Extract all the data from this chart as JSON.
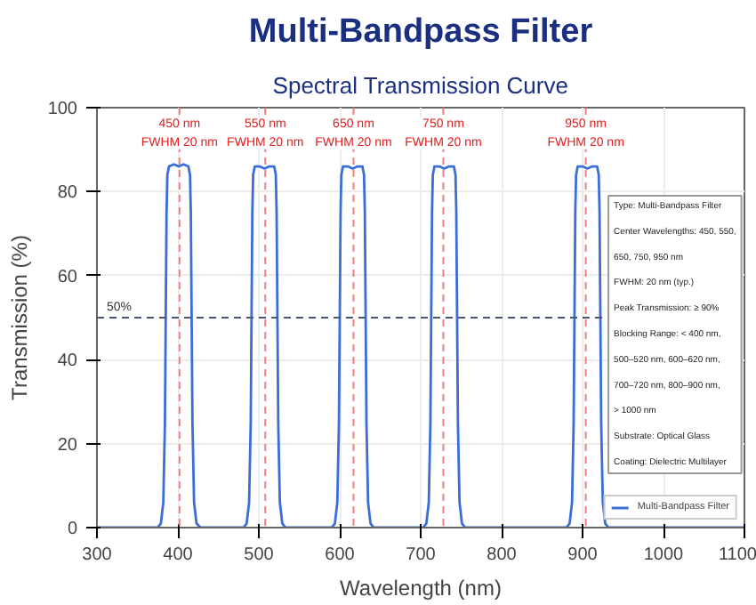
{
  "chart_data": {
    "type": "line",
    "title": "Multi-Bandpass Filter",
    "subtitle": "Spectral Transmission Curve",
    "xlabel": "Wavelength (nm)",
    "ylabel": "Transmission (%)",
    "xlim": [
      300,
      1100
    ],
    "ylim": [
      0,
      100
    ],
    "xticks": [
      300,
      400,
      500,
      600,
      700,
      800,
      900,
      1000,
      1100
    ],
    "yticks": [
      0,
      20,
      40,
      60,
      80,
      100
    ],
    "grid": true,
    "legend": "bottom right",
    "line_style": "solid",
    "series": [
      {
        "name": "Multi-Bandpass Filter",
        "color": "#3b6fd6",
        "x": [
          300,
          375,
          379,
          382,
          384,
          385,
          386,
          387,
          389,
          395,
          401,
          407,
          413,
          415,
          416,
          417,
          418,
          420,
          423,
          428,
          481,
          485,
          488,
          490,
          491,
          492,
          493,
          495,
          501,
          507,
          513,
          519,
          521,
          522,
          523,
          524,
          526,
          529,
          533,
          590,
          594,
          597,
          599,
          600,
          601,
          602,
          604,
          610,
          616,
          622,
          628,
          630,
          631,
          632,
          633,
          635,
          638,
          642,
          703,
          707,
          710,
          712,
          713,
          714,
          715,
          717,
          723,
          729,
          735,
          741,
          743,
          744,
          745,
          746,
          748,
          751,
          755,
          880,
          884,
          887,
          889,
          890,
          891,
          892,
          894,
          900,
          906,
          912,
          918,
          920,
          921,
          922,
          923,
          925,
          928,
          932,
          1100
        ],
        "values": [
          0,
          0,
          1,
          6,
          25,
          50,
          75,
          84,
          86,
          86.5,
          86,
          86.5,
          86,
          84,
          75,
          50,
          25,
          6,
          1,
          0,
          0,
          1,
          6,
          25,
          50,
          75,
          84,
          86,
          86,
          85.5,
          86,
          86,
          84,
          75,
          50,
          25,
          6,
          1,
          0,
          0,
          1,
          6,
          25,
          50,
          75,
          84,
          86,
          86,
          85.5,
          86,
          86,
          84,
          75,
          50,
          25,
          6,
          1,
          0,
          0,
          1,
          6,
          25,
          50,
          75,
          84,
          86,
          86,
          85.5,
          86,
          86,
          84,
          75,
          50,
          25,
          6,
          1,
          0,
          0,
          1,
          6,
          25,
          50,
          75,
          84,
          86,
          86,
          85.5,
          86,
          86,
          84,
          75,
          50,
          25,
          6,
          1,
          0,
          0
        ]
      }
    ],
    "ref_lines": [
      {
        "axis": "y",
        "value": 50,
        "label": "50%",
        "color": "#4a5878",
        "line_style": "dashed"
      },
      {
        "axis": "x",
        "value": 402,
        "label": "450 nm\nFWHM 20 nm",
        "color": "#f08080",
        "line_style": "dashed"
      },
      {
        "axis": "x",
        "value": 508,
        "label": "550 nm\nFWHM 20 nm",
        "color": "#f08080",
        "line_style": "dashed"
      },
      {
        "axis": "x",
        "value": 617,
        "label": "650 nm\nFWHM 20 nm",
        "color": "#f08080",
        "line_style": "dashed"
      },
      {
        "axis": "x",
        "value": 728,
        "label": "750 nm\nFWHM 20 nm",
        "color": "#f08080",
        "line_style": "dashed"
      },
      {
        "axis": "x",
        "value": 904,
        "label": "950 nm\nFWHM 20 nm",
        "color": "#f08080",
        "line_style": "dashed"
      }
    ],
    "annotations": [
      "Type: Multi-Bandpass Filter",
      "Center Wavelengths: 450, 550,",
      "650, 750, 950 nm",
      "FWHM: 20 nm (typ.)",
      "Peak Transmission: ≥ 90%",
      "Blocking Range: < 400 nm,",
      "500–520 nm, 600–620 nm,",
      "700–720 nm, 800–900 nm,",
      "> 1000 nm",
      "Substrate: Optical Glass",
      "Coating: Dielectric Multilayer"
    ]
  }
}
